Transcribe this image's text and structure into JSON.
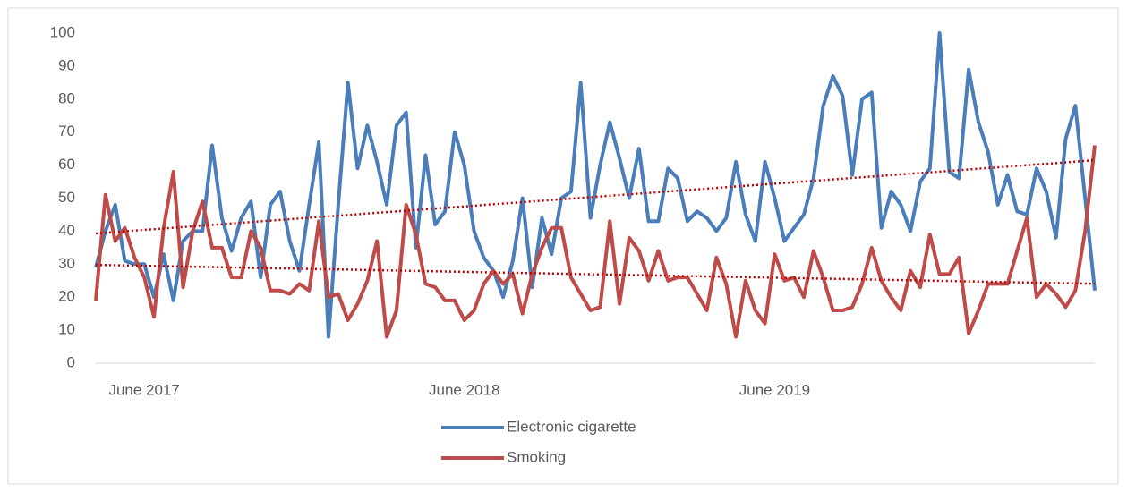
{
  "chart_data": {
    "type": "line",
    "categories": [
      null,
      null,
      null,
      null,
      null,
      "June 2017",
      null,
      null,
      null,
      null,
      null,
      null,
      null,
      null,
      null,
      null,
      null,
      null,
      null,
      null,
      null,
      null,
      null,
      null,
      null,
      null,
      null,
      null,
      null,
      null,
      null,
      null,
      null,
      null,
      null,
      null,
      null,
      null,
      "June 2018",
      null,
      null,
      null,
      null,
      null,
      null,
      null,
      null,
      null,
      null,
      null,
      null,
      null,
      null,
      null,
      null,
      null,
      null,
      null,
      null,
      null,
      null,
      null,
      null,
      null,
      null,
      null,
      null,
      null,
      null,
      null,
      "June 2019",
      null,
      null,
      null,
      null,
      null,
      null,
      null,
      null,
      null,
      null,
      null,
      null,
      null,
      null,
      null,
      null,
      null,
      null,
      null,
      null,
      null,
      null,
      null,
      null,
      null,
      null,
      null,
      null,
      null,
      null,
      null,
      null,
      null
    ],
    "series": [
      {
        "name": "Electronic cigarette",
        "color": "#4a7ebb",
        "values": [
          29,
          40,
          48,
          31,
          30,
          30,
          20,
          33,
          19,
          37,
          40,
          40,
          66,
          44,
          34,
          44,
          49,
          26,
          48,
          52,
          37,
          28,
          48,
          67,
          8,
          48,
          85,
          59,
          72,
          61,
          48,
          72,
          76,
          35,
          63,
          42,
          46,
          70,
          60,
          40,
          32,
          28,
          20,
          31,
          50,
          23,
          44,
          33,
          50,
          52,
          85,
          44,
          60,
          73,
          62,
          50,
          65,
          43,
          43,
          59,
          56,
          43,
          46,
          44,
          40,
          44,
          61,
          45,
          37,
          61,
          50,
          37,
          41,
          45,
          56,
          78,
          87,
          81,
          57,
          80,
          82,
          41,
          52,
          48,
          40,
          55,
          59,
          100,
          58,
          56,
          89,
          73,
          64,
          48,
          57,
          46,
          45,
          59,
          52,
          38,
          68,
          78,
          50,
          22
        ]
      },
      {
        "name": "Smoking",
        "color": "#be4b48",
        "values": [
          19,
          51,
          37,
          41,
          32,
          26,
          14,
          41,
          58,
          23,
          40,
          49,
          35,
          35,
          26,
          26,
          40,
          35,
          22,
          22,
          21,
          24,
          22,
          43,
          20,
          21,
          13,
          18,
          25,
          37,
          8,
          16,
          48,
          39,
          24,
          23,
          19,
          19,
          13,
          16,
          24,
          28,
          24,
          27,
          15,
          27,
          35,
          41,
          41,
          26,
          21,
          16,
          17,
          43,
          18,
          38,
          34,
          25,
          34,
          25,
          26,
          26,
          21,
          16,
          32,
          24,
          8,
          25,
          16,
          12,
          33,
          25,
          26,
          20,
          34,
          26,
          16,
          16,
          17,
          24,
          35,
          25,
          20,
          16,
          28,
          23,
          39,
          27,
          27,
          32,
          9,
          16,
          24,
          24,
          24,
          34,
          44,
          20,
          24,
          21,
          17,
          22,
          40,
          66
        ]
      }
    ],
    "trendline": true,
    "trendline_color": "#c00000",
    "ylim": [
      0,
      100
    ],
    "yticks": [
      0,
      10,
      20,
      30,
      40,
      50,
      60,
      70,
      80,
      90,
      100
    ],
    "grid": false,
    "legend": "bottom"
  }
}
